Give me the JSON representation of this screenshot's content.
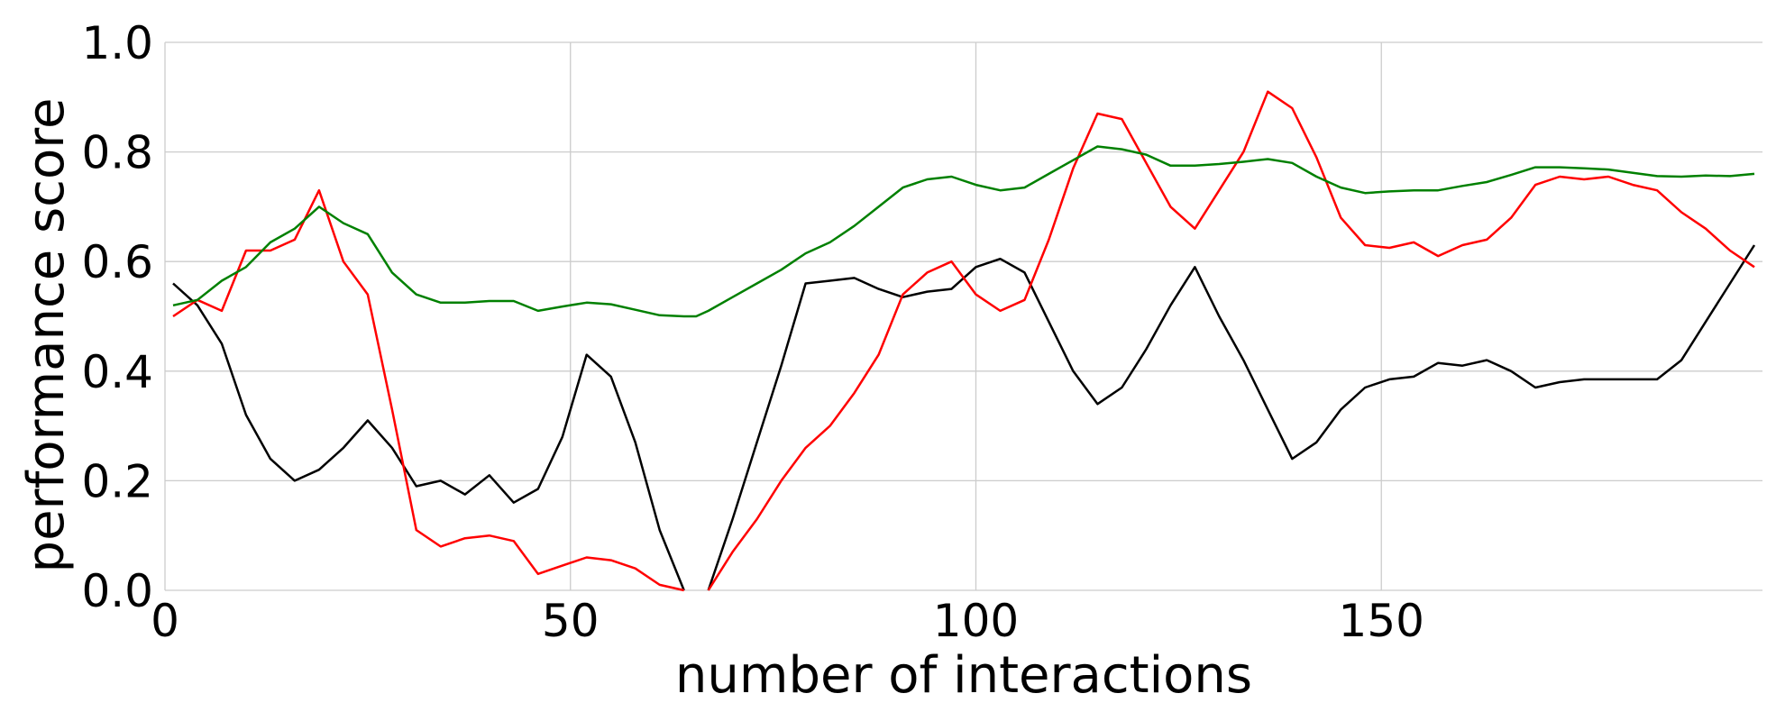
{
  "chart_data": {
    "type": "line",
    "xlabel": "number of interactions",
    "ylabel": "performance score",
    "xlim": [
      0,
      197
    ],
    "ylim": [
      0,
      1
    ],
    "xticks": [
      0,
      50,
      100,
      150
    ],
    "yticks": [
      {
        "value": 0,
        "label": "0.0"
      },
      0.2,
      0.4,
      0.6,
      0.8,
      {
        "value": 1,
        "label": "1.0"
      }
    ],
    "grid": true,
    "x": [
      1,
      4,
      7,
      10,
      13,
      16,
      19,
      22,
      25,
      28,
      31,
      34,
      37,
      40,
      43,
      46,
      49,
      52,
      55,
      58,
      61,
      64,
      65.5,
      67,
      70,
      73,
      76,
      79,
      82,
      85,
      88,
      91,
      94,
      97,
      100,
      103,
      106,
      109,
      112,
      115,
      118,
      121,
      124,
      127,
      130,
      133,
      136,
      139,
      142,
      145,
      148,
      151,
      154,
      157,
      160,
      163,
      166,
      169,
      172,
      175,
      178,
      181,
      184,
      187,
      190,
      193,
      196
    ],
    "series": [
      {
        "color": "#000000",
        "values": [
          0.56,
          0.52,
          0.45,
          0.32,
          0.24,
          0.2,
          0.22,
          0.26,
          0.31,
          0.26,
          0.19,
          0.2,
          0.175,
          0.21,
          0.16,
          0.185,
          0.28,
          0.43,
          0.39,
          0.27,
          0.11,
          0.0,
          null,
          0.0,
          0.13,
          0.27,
          0.41,
          0.56,
          0.565,
          0.57,
          0.55,
          0.535,
          0.545,
          0.55,
          0.59,
          0.605,
          0.58,
          0.49,
          0.4,
          0.34,
          0.37,
          0.44,
          0.52,
          0.59,
          0.5,
          0.42,
          0.33,
          0.24,
          0.27,
          0.33,
          0.37,
          0.385,
          0.39,
          0.415,
          0.41,
          0.42,
          0.4,
          0.37,
          0.38,
          0.385,
          0.385,
          0.385,
          0.385,
          0.42,
          0.49,
          0.56,
          0.63
        ]
      },
      {
        "color": "#ff0000",
        "values": [
          0.5,
          0.53,
          0.51,
          0.62,
          0.62,
          0.64,
          0.73,
          0.6,
          0.54,
          0.33,
          0.11,
          0.08,
          0.095,
          0.1,
          0.09,
          0.03,
          0.045,
          0.06,
          0.055,
          0.04,
          0.01,
          0.0,
          null,
          0.0,
          0.07,
          0.13,
          0.2,
          0.26,
          0.3,
          0.36,
          0.43,
          0.54,
          0.58,
          0.6,
          0.54,
          0.51,
          0.53,
          0.64,
          0.77,
          0.87,
          0.86,
          0.78,
          0.7,
          0.66,
          0.73,
          0.8,
          0.91,
          0.88,
          0.79,
          0.68,
          0.63,
          0.625,
          0.635,
          0.61,
          0.63,
          0.64,
          0.68,
          0.74,
          0.755,
          0.75,
          0.755,
          0.74,
          0.73,
          0.69,
          0.66,
          0.62,
          0.59
        ]
      },
      {
        "color": "#008000",
        "values": [
          0.52,
          0.53,
          0.565,
          0.59,
          0.635,
          0.66,
          0.7,
          0.67,
          0.65,
          0.58,
          0.54,
          0.525,
          0.525,
          0.528,
          0.528,
          0.51,
          0.518,
          0.525,
          0.522,
          0.512,
          0.502,
          0.5,
          0.5,
          0.51,
          0.535,
          0.56,
          0.585,
          0.615,
          0.635,
          0.665,
          0.7,
          0.735,
          0.75,
          0.755,
          0.74,
          0.73,
          0.735,
          0.76,
          0.785,
          0.81,
          0.805,
          0.795,
          0.775,
          0.775,
          0.778,
          0.782,
          0.787,
          0.78,
          0.755,
          0.735,
          0.725,
          0.728,
          0.73,
          0.73,
          0.738,
          0.745,
          0.758,
          0.772,
          0.772,
          0.77,
          0.768,
          0.762,
          0.756,
          0.755,
          0.757,
          0.756,
          0.76
        ]
      }
    ]
  }
}
